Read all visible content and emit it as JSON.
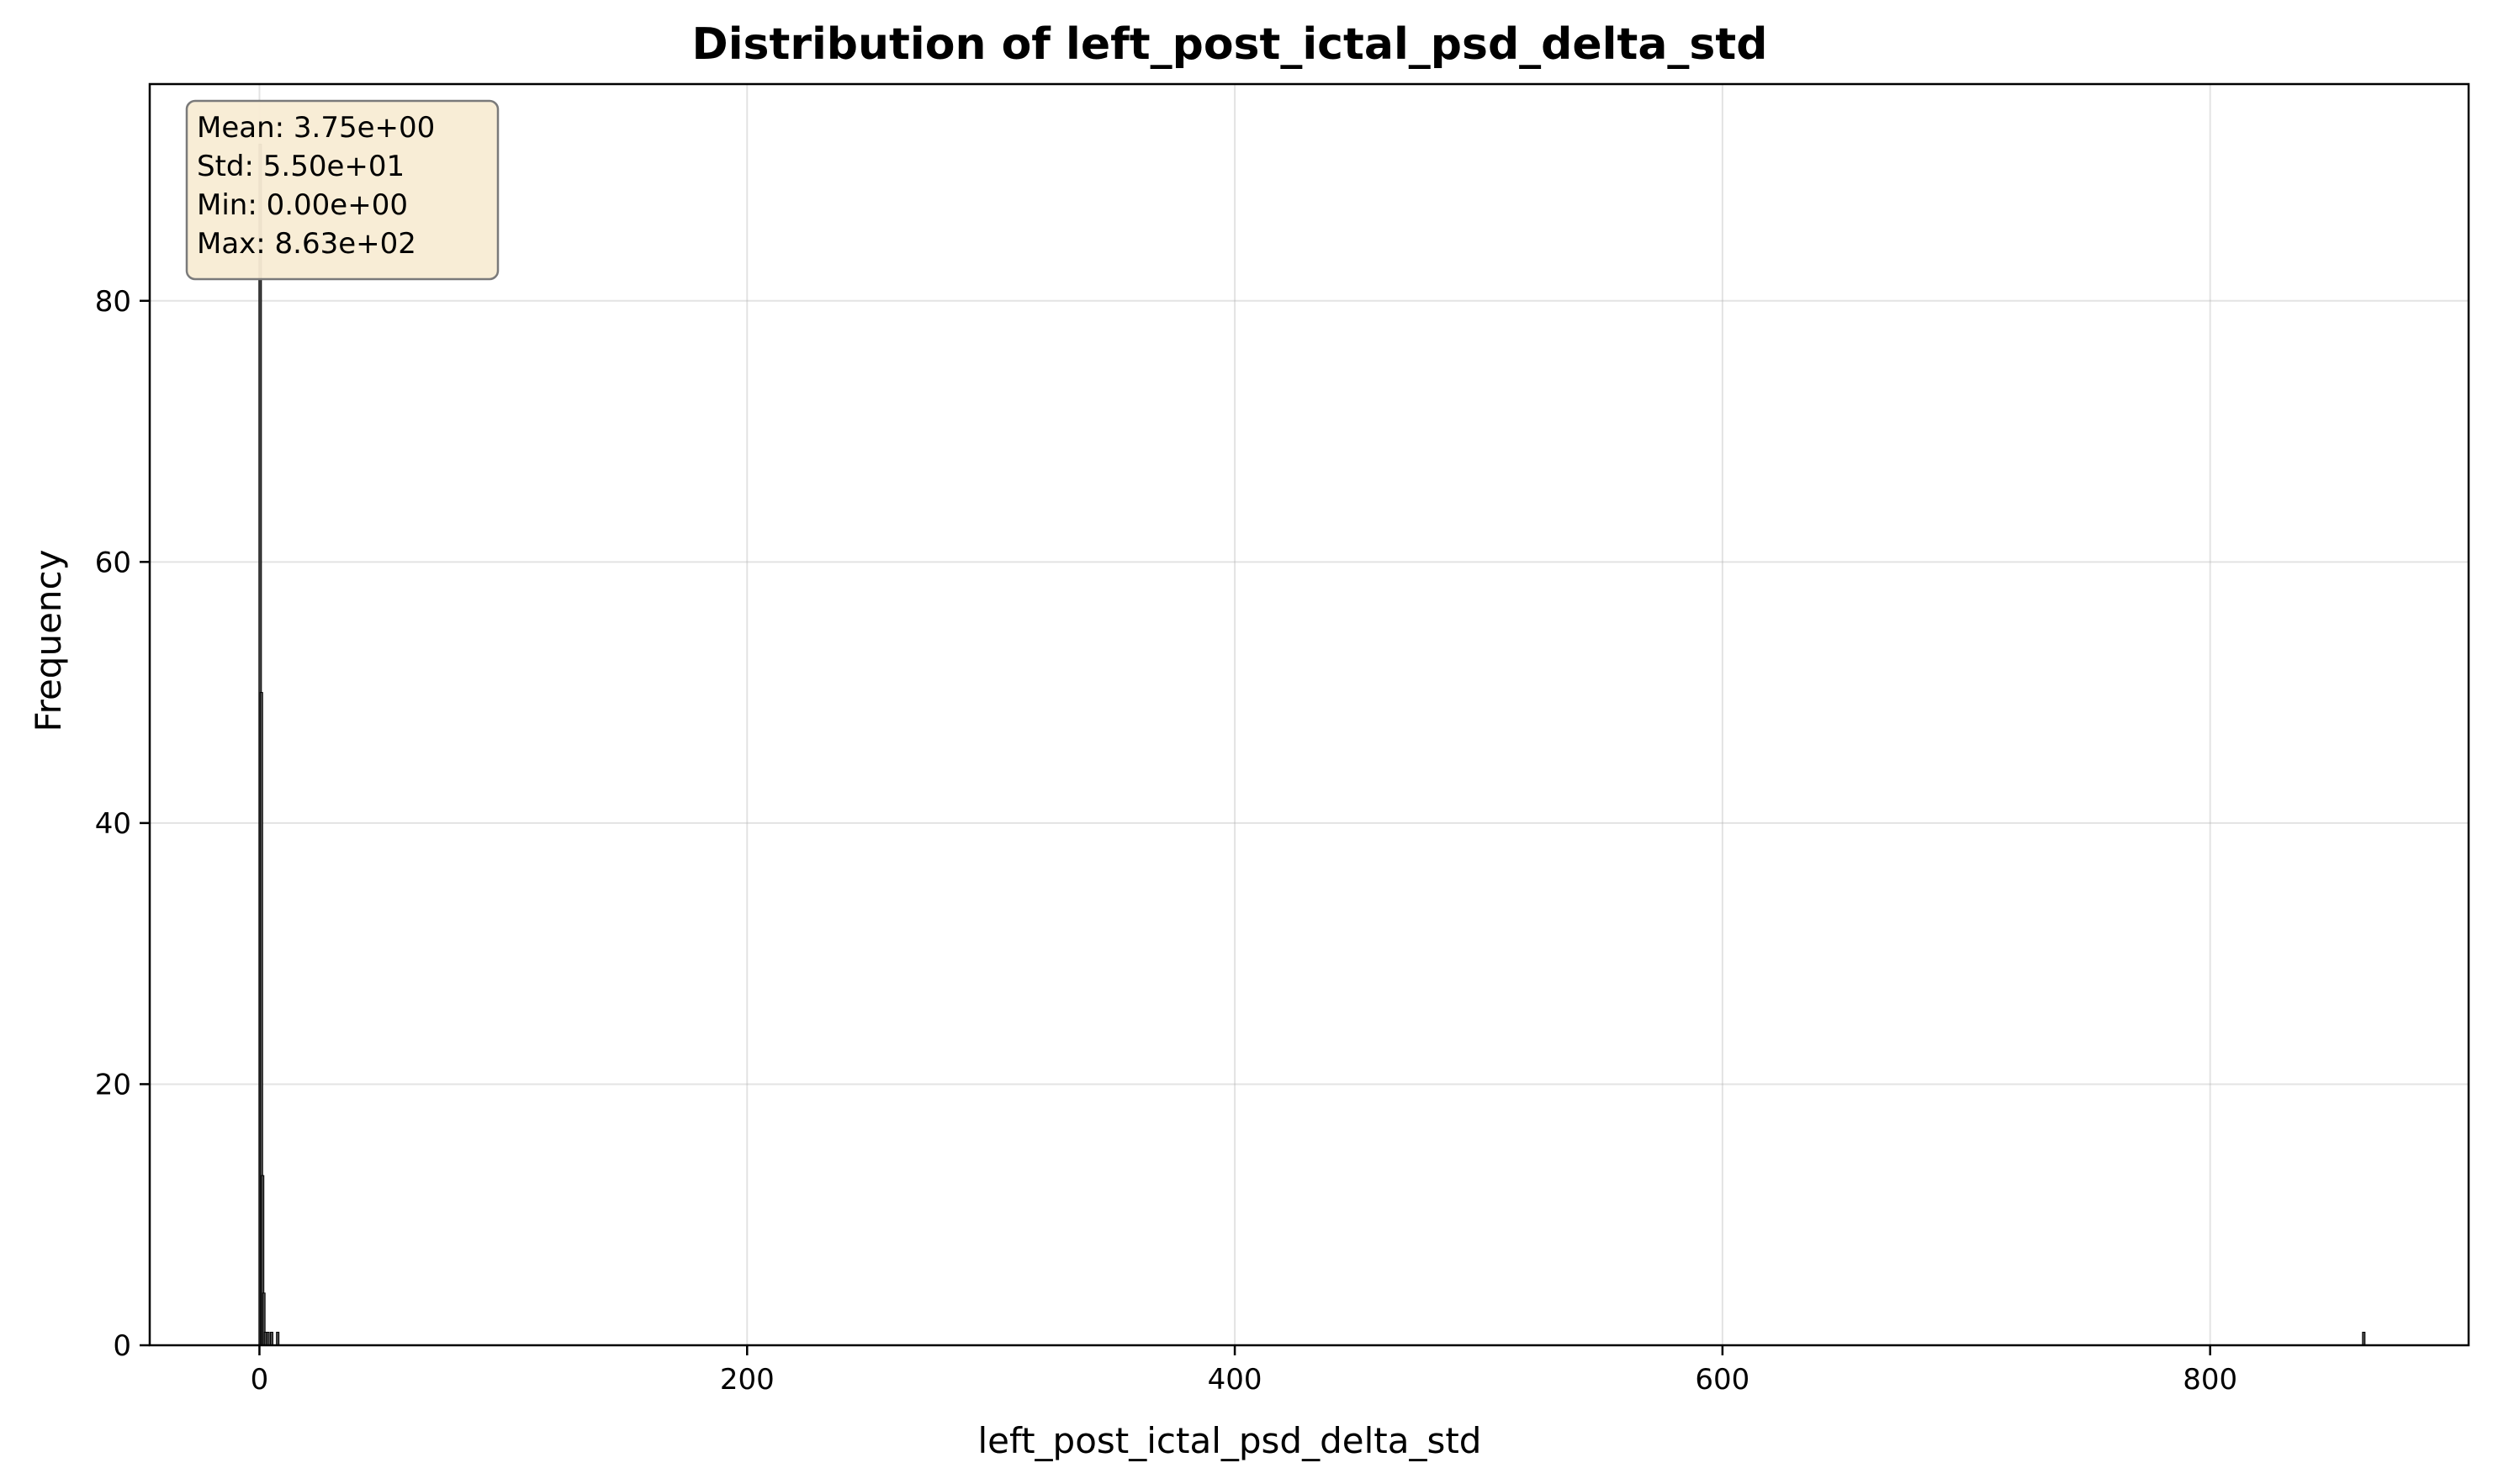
{
  "chart_data": {
    "type": "bar",
    "title": "Distribution of left_post_ictal_psd_delta_std",
    "xlabel": "left_post_ictal_psd_delta_std",
    "ylabel": "Frequency",
    "xlim": [
      -45,
      906
    ],
    "ylim": [
      0,
      96.6
    ],
    "xticks": [
      0,
      200,
      400,
      600,
      800
    ],
    "yticks": [
      0,
      20,
      40,
      60,
      80
    ],
    "grid": true,
    "bar_color": "#4a4a4a",
    "bars": [
      {
        "x": 0.3,
        "value": 92
      },
      {
        "x": 0.8,
        "value": 50
      },
      {
        "x": 1.3,
        "value": 13
      },
      {
        "x": 1.8,
        "value": 4
      },
      {
        "x": 2.5,
        "value": 1
      },
      {
        "x": 3.5,
        "value": 1
      },
      {
        "x": 5.0,
        "value": 1
      },
      {
        "x": 7.5,
        "value": 1
      },
      {
        "x": 863,
        "value": 1
      }
    ],
    "stats_box": {
      "lines": [
        "Mean: 3.75e+00",
        "Std: 5.50e+01",
        "Min: 0.00e+00",
        "Max: 8.63e+02"
      ],
      "placement": "top-left",
      "background": "#f8ecd4",
      "border": "#7a7a7a"
    }
  }
}
